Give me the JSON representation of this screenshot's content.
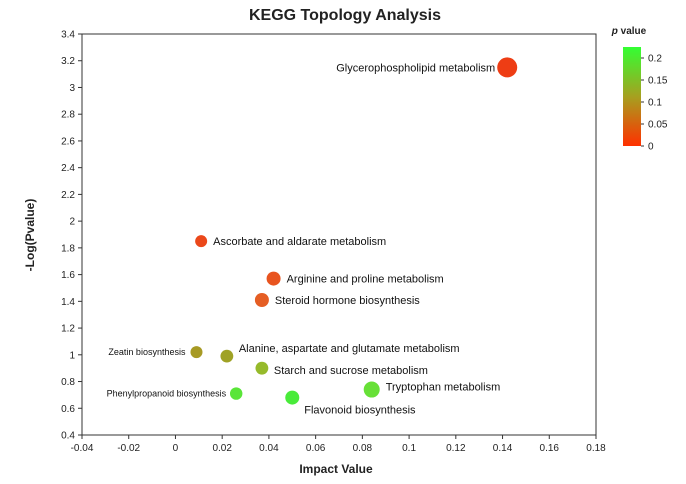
{
  "chart_data": {
    "type": "scatter",
    "title": "KEGG Topology Analysis",
    "xlabel": "Impact Value",
    "ylabel": "-Log(Pvalue)",
    "xlim": [
      -0.04,
      0.18
    ],
    "ylim": [
      0.4,
      3.4
    ],
    "x_ticks": [
      "-0.04",
      "-0.02",
      "0",
      "0.02",
      "0.04",
      "0.06",
      "0.08",
      "0.1",
      "0.12",
      "0.14",
      "0.16",
      "0.18"
    ],
    "y_ticks": [
      "0.4",
      "0.6",
      "0.8",
      "1",
      "1.2",
      "1.4",
      "1.6",
      "1.8",
      "2",
      "2.2",
      "2.4",
      "2.6",
      "2.8",
      "3",
      "3.2",
      "3.4"
    ],
    "legend": {
      "title_p": "p",
      "title_rest": " value",
      "ticks": [
        "0.2",
        "0.15",
        "0.1",
        "0.05",
        "0"
      ],
      "color_low": "#ff3000",
      "color_high": "#33ff33"
    },
    "points": [
      {
        "label": "Glycerophospholipid metabolism",
        "x": 0.142,
        "y": 3.15,
        "p": 0.0007,
        "size": 3
      },
      {
        "label": "Ascorbate and aldarate metabolism",
        "x": 0.011,
        "y": 1.85,
        "p": 0.014,
        "size": 1
      },
      {
        "label": "Arginine and proline metabolism",
        "x": 0.042,
        "y": 1.57,
        "p": 0.027,
        "size": 1.5
      },
      {
        "label": "Steroid hormone biosynthesis",
        "x": 0.037,
        "y": 1.41,
        "p": 0.039,
        "size": 1.5
      },
      {
        "label": "Zeatin biosynthesis",
        "x": 0.009,
        "y": 1.02,
        "p": 0.095,
        "size": 1
      },
      {
        "label": "Alanine, aspartate and glutamate metabolism",
        "x": 0.022,
        "y": 0.99,
        "p": 0.102,
        "size": 1.2
      },
      {
        "label": "Starch and sucrose metabolism",
        "x": 0.037,
        "y": 0.9,
        "p": 0.126,
        "size": 1.2
      },
      {
        "label": "Phenylpropanoid biosynthesis",
        "x": 0.026,
        "y": 0.71,
        "p": 0.195,
        "size": 1.1
      },
      {
        "label": "Tryptophan metabolism",
        "x": 0.084,
        "y": 0.74,
        "p": 0.182,
        "size": 2
      },
      {
        "label": "Flavonoid biosynthesis",
        "x": 0.05,
        "y": 0.68,
        "p": 0.209,
        "size": 1.5
      }
    ]
  }
}
